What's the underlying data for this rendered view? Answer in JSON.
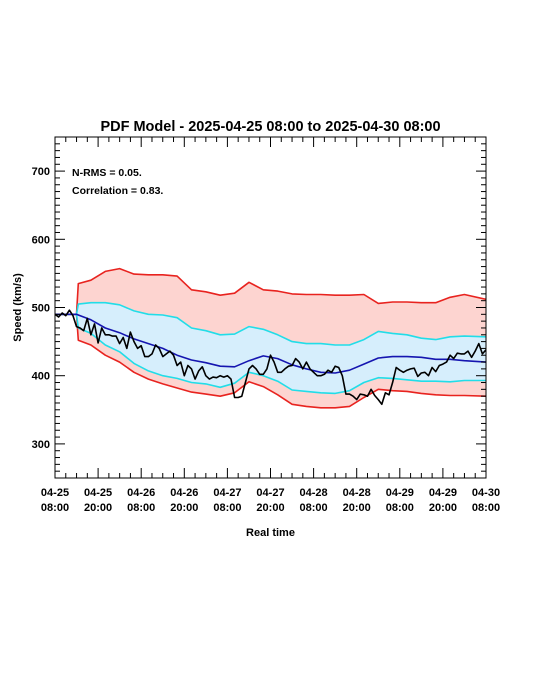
{
  "chart_data": {
    "type": "line",
    "title": "PDF Model - 2025-04-25 08:00 to 2025-04-30 08:00",
    "xlabel": "Real time",
    "ylabel": "Speed (km/s)",
    "ylim": [
      250,
      750
    ],
    "xlim": [
      "2025-04-25 08:00",
      "2025-04-30 08:00"
    ],
    "grid": false,
    "annotations": [
      "N-RMS = 0.05.",
      "Correlation = 0.83."
    ],
    "x_ticks": [
      {
        "line1": "04-25",
        "line2": "08:00"
      },
      {
        "line1": "04-25",
        "line2": "20:00"
      },
      {
        "line1": "04-26",
        "line2": "08:00"
      },
      {
        "line1": "04-26",
        "line2": "20:00"
      },
      {
        "line1": "04-27",
        "line2": "08:00"
      },
      {
        "line1": "04-27",
        "line2": "20:00"
      },
      {
        "line1": "04-28",
        "line2": "08:00"
      },
      {
        "line1": "04-28",
        "line2": "20:00"
      },
      {
        "line1": "04-29",
        "line2": "08:00"
      },
      {
        "line1": "04-29",
        "line2": "20:00"
      },
      {
        "line1": "04-30",
        "line2": "08:00"
      }
    ],
    "y_ticks": [
      300,
      400,
      500,
      600,
      700
    ],
    "time_hours": [
      0,
      6,
      6.5,
      10,
      14,
      18,
      22,
      26,
      30,
      34,
      38,
      42,
      46,
      50,
      54,
      58,
      62,
      66,
      70,
      74,
      78,
      82,
      86,
      90,
      94,
      98,
      102,
      106,
      110,
      114,
      120
    ],
    "series": [
      {
        "role": "outer_upper",
        "color": "#e8231f",
        "values": [
          490,
          490,
          535,
          540,
          553,
          557,
          549,
          548,
          548,
          546,
          526,
          523,
          518,
          521,
          537,
          526,
          524,
          520,
          519,
          519,
          518,
          518,
          519,
          506,
          508,
          508,
          507,
          507,
          515,
          519,
          512
        ]
      },
      {
        "role": "outer_lower",
        "color": "#e8231f",
        "values": [
          490,
          490,
          452,
          445,
          430,
          420,
          405,
          395,
          388,
          382,
          376,
          373,
          370,
          375,
          391,
          384,
          372,
          358,
          355,
          353,
          353,
          355,
          368,
          380,
          378,
          377,
          374,
          372,
          371,
          371,
          370
        ]
      },
      {
        "role": "inner_upper",
        "color": "#22dde8",
        "values": [
          490,
          490,
          505,
          507,
          507,
          504,
          495,
          490,
          489,
          485,
          470,
          466,
          460,
          461,
          472,
          468,
          460,
          450,
          447,
          447,
          445,
          445,
          453,
          465,
          462,
          460,
          455,
          453,
          457,
          458,
          457
        ]
      },
      {
        "role": "inner_lower",
        "color": "#22dde8",
        "values": [
          490,
          490,
          470,
          462,
          445,
          435,
          418,
          407,
          400,
          396,
          390,
          388,
          383,
          389,
          405,
          400,
          392,
          379,
          377,
          375,
          374,
          378,
          390,
          397,
          396,
          394,
          392,
          392,
          391,
          393,
          393
        ]
      },
      {
        "role": "median",
        "color": "#1515b0",
        "values": [
          490,
          490,
          489,
          482,
          470,
          463,
          454,
          447,
          440,
          430,
          423,
          419,
          414,
          413,
          422,
          429,
          425,
          416,
          410,
          405,
          404,
          408,
          417,
          426,
          428,
          428,
          427,
          424,
          424,
          422,
          420
        ]
      }
    ],
    "observed": {
      "color": "#000000",
      "x_hours": [
        0,
        1,
        2,
        3,
        4,
        5,
        6,
        7,
        8,
        9,
        10,
        11,
        12,
        13,
        14,
        15,
        16,
        17,
        18,
        19,
        20,
        21,
        22,
        23,
        24,
        25,
        26,
        27,
        28,
        29,
        30,
        31,
        32,
        33,
        34,
        35,
        36,
        37,
        38,
        39,
        40,
        41,
        42,
        43,
        44,
        45,
        46,
        47,
        48,
        49,
        50,
        51,
        52,
        53,
        54,
        55,
        56,
        57,
        58,
        59,
        60,
        61,
        62,
        63,
        64,
        65,
        66,
        67,
        68,
        69,
        70,
        71,
        72,
        73,
        74,
        75,
        76,
        77,
        78,
        79,
        80,
        81,
        82,
        83,
        84,
        85,
        86,
        87,
        88,
        89,
        90,
        91,
        92,
        93,
        94,
        95,
        96,
        97,
        98,
        99,
        100,
        101,
        102,
        103,
        104,
        105,
        106,
        107,
        108,
        109,
        110,
        111,
        112,
        113,
        114,
        115,
        116,
        117,
        118,
        119,
        120
      ],
      "values": [
        490,
        486,
        492,
        488,
        496,
        488,
        472,
        470,
        466,
        484,
        460,
        476,
        448,
        470,
        460,
        460,
        458,
        458,
        447,
        456,
        440,
        464,
        450,
        440,
        444,
        428,
        428,
        432,
        445,
        440,
        428,
        432,
        436,
        430,
        415,
        420,
        400,
        415,
        410,
        395,
        407,
        413,
        400,
        395,
        398,
        397,
        400,
        398,
        400,
        395,
        368,
        368,
        370,
        390,
        410,
        415,
        410,
        402,
        402,
        410,
        430,
        420,
        405,
        405,
        410,
        414,
        415,
        425,
        420,
        410,
        420,
        410,
        405,
        400,
        400,
        402,
        408,
        405,
        414,
        412,
        400,
        373,
        373,
        370,
        365,
        373,
        372,
        370,
        380,
        371,
        365,
        358,
        375,
        372,
        390,
        412,
        408,
        405,
        408,
        410,
        411,
        399,
        404,
        405,
        400,
        412,
        406,
        415,
        417,
        420,
        430,
        425,
        433,
        432,
        432,
        436,
        427,
        436,
        447,
        432,
        438
      ]
    }
  }
}
